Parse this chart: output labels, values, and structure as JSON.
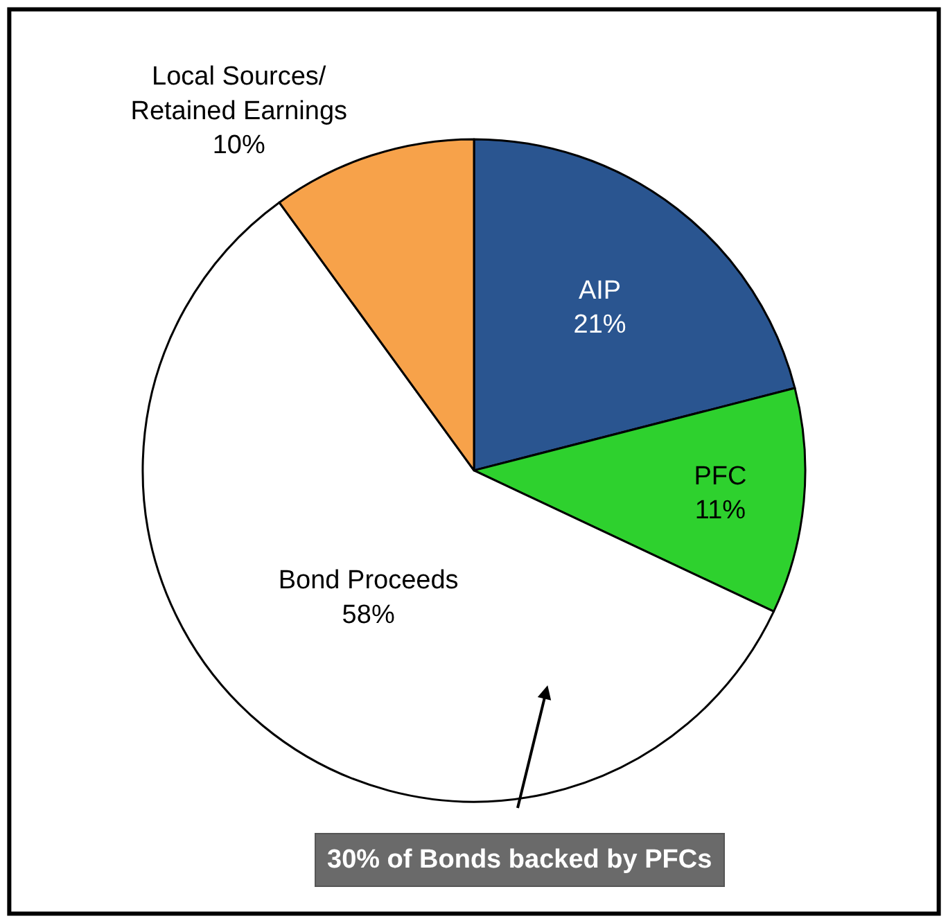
{
  "chart_data": {
    "type": "pie",
    "categories": [
      "AIP",
      "PFC",
      "Bond Proceeds",
      "Local Sources/\nRetained Earnings"
    ],
    "values": [
      21,
      11,
      58,
      10
    ],
    "value_labels": [
      "21%",
      "11%",
      "58%",
      "10%"
    ],
    "colors": [
      "#2a5590",
      "#2ed12e",
      "#ffffff",
      "#f7a24a"
    ],
    "annotations": [
      "30% of Bonds backed by PFCs"
    ],
    "legend": false
  }
}
